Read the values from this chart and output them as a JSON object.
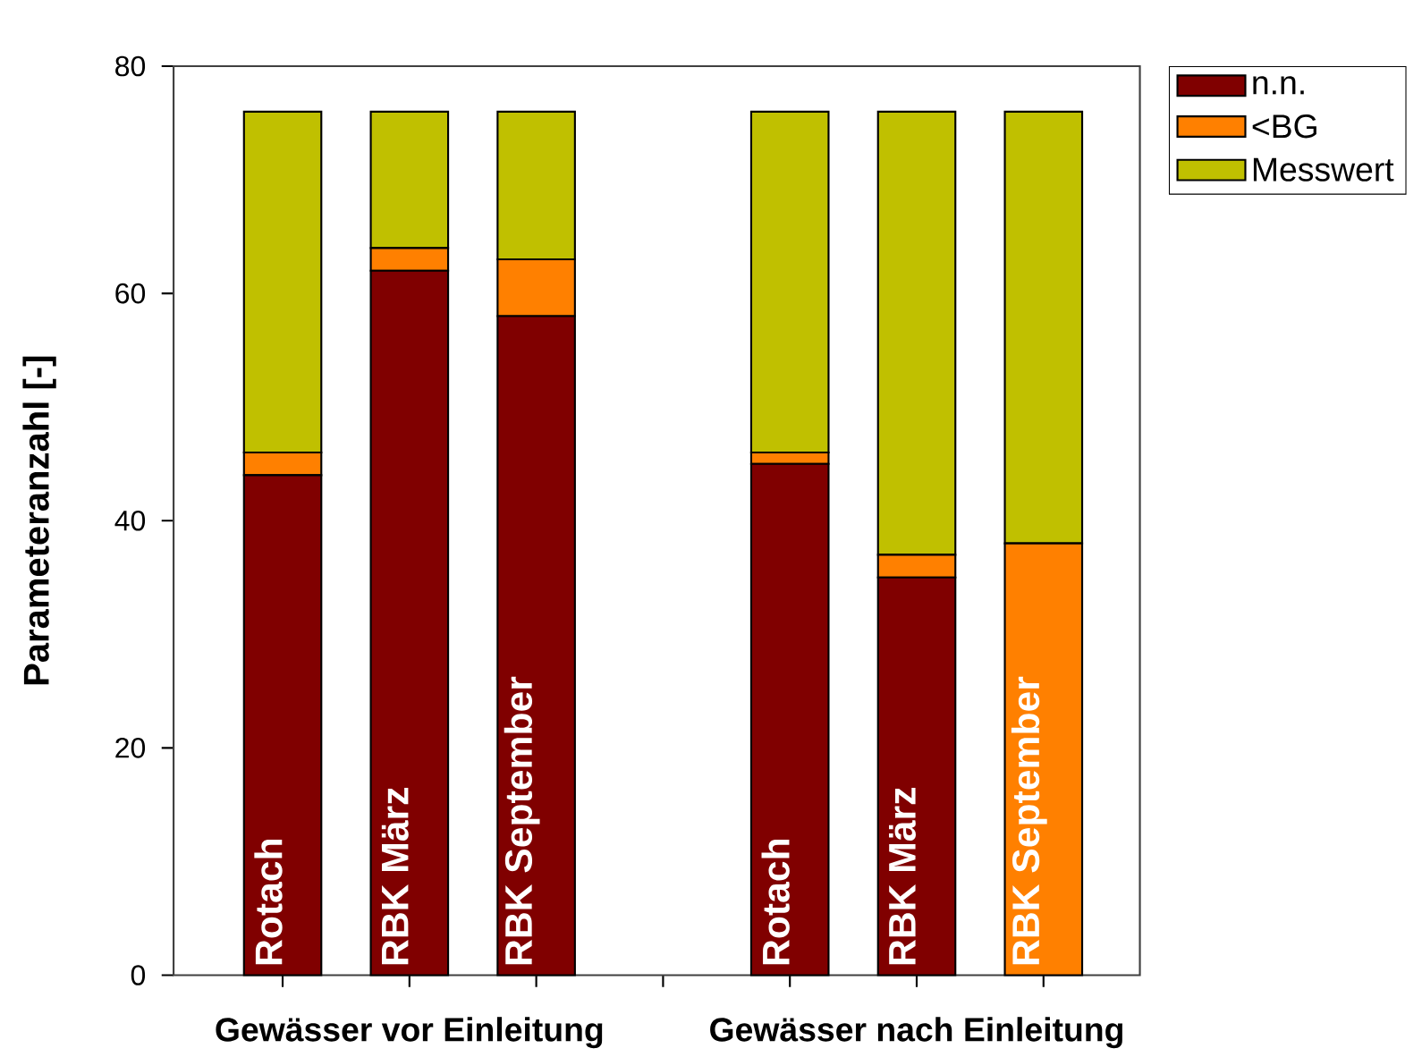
{
  "chart_data": {
    "type": "bar",
    "stacked": true,
    "ylabel": "Parameteranzahl [-]",
    "categories": [
      "Rotach",
      "RBK März",
      "RBK September",
      null,
      "Rotach",
      "RBK März",
      "RBK September"
    ],
    "series": [
      {
        "name": "n.n.",
        "color": "#800000",
        "values": [
          44,
          62,
          58,
          null,
          45,
          35,
          0
        ]
      },
      {
        "name": "<BG",
        "color": "#ff8000",
        "values": [
          2,
          2,
          5,
          null,
          1,
          2,
          38
        ]
      },
      {
        "name": "Messwert",
        "color": "#c0c000",
        "values": [
          30,
          12,
          13,
          null,
          30,
          39,
          38
        ]
      }
    ],
    "ylim": [
      0,
      80
    ],
    "yticks": [
      0,
      20,
      40,
      60,
      80
    ],
    "legend": "right",
    "annotations": [
      "Gewässer vor Einleitung",
      "Gewässer nach Einleitung"
    ]
  }
}
